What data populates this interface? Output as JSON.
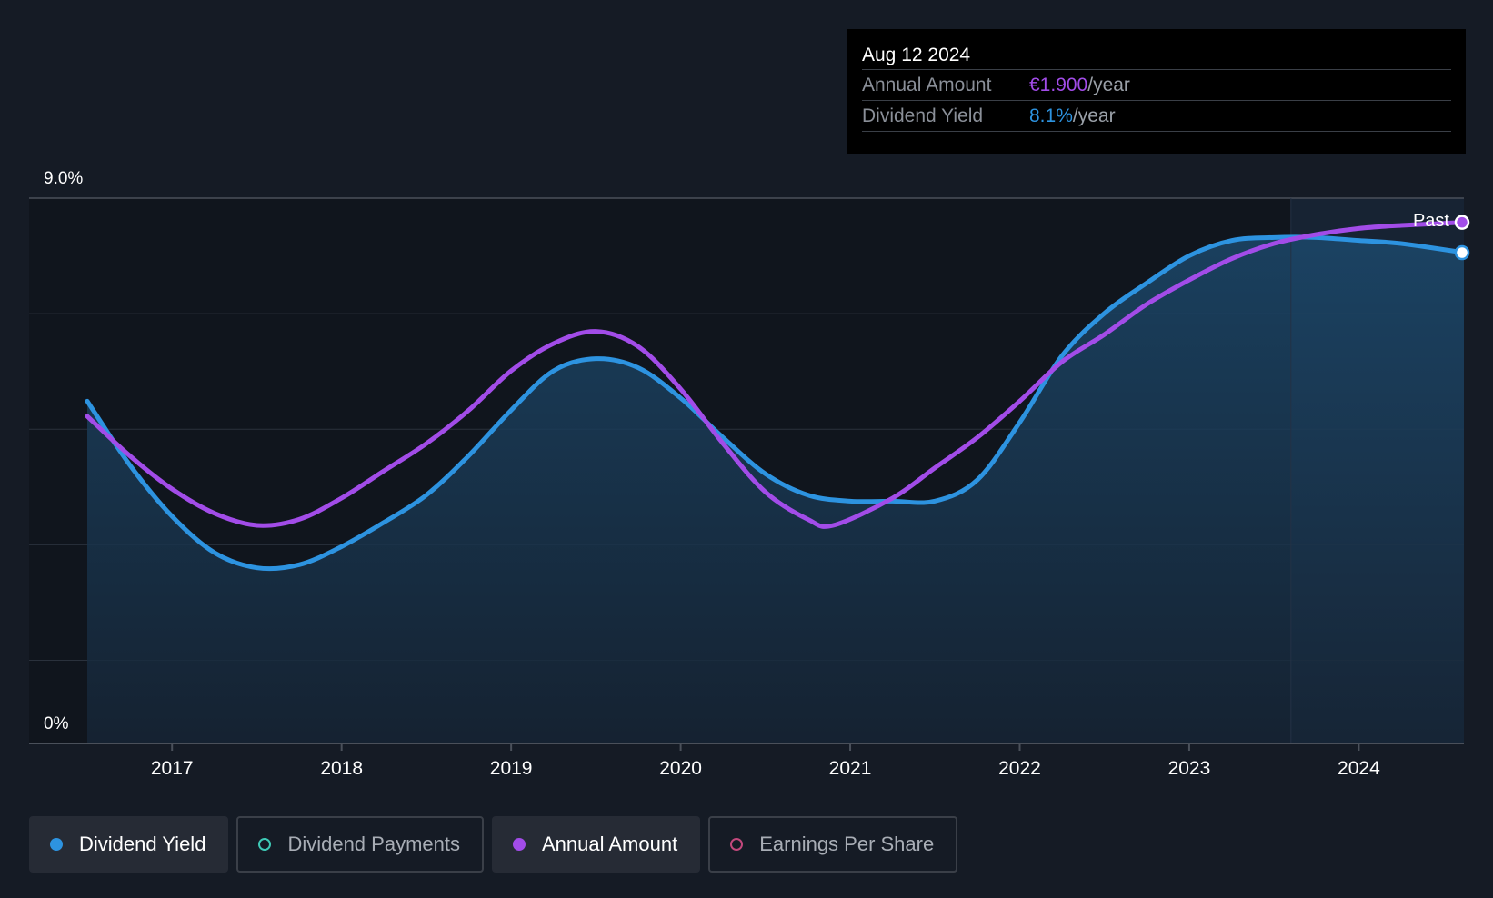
{
  "tooltip": {
    "date": "Aug 12 2024",
    "rows": [
      {
        "label": "Annual Amount",
        "value": "€1.900",
        "unit": "/year",
        "color": "#a24ce8"
      },
      {
        "label": "Dividend Yield",
        "value": "8.1%",
        "unit": "/year",
        "color": "#2d93e0"
      }
    ]
  },
  "legend": [
    {
      "label": "Dividend Yield",
      "color": "#2d93e0",
      "style": "filled",
      "active": true
    },
    {
      "label": "Dividend Payments",
      "color": "#3ec9b6",
      "style": "hollow",
      "active": false
    },
    {
      "label": "Annual Amount",
      "color": "#a24ce8",
      "style": "filled",
      "active": true
    },
    {
      "label": "Earnings Per Share",
      "color": "#c2487c",
      "style": "hollow",
      "active": false
    }
  ],
  "chart_data": {
    "type": "line",
    "ylim": [
      0,
      9.0
    ],
    "y_tick_labels": [
      "9.0%",
      "0%"
    ],
    "x_tick_labels": [
      "2017",
      "2018",
      "2019",
      "2020",
      "2021",
      "2022",
      "2023",
      "2024"
    ],
    "xlim": [
      2016.5,
      2024.62
    ],
    "past_marker": {
      "label": "Past",
      "x": 2023.6
    },
    "grid": true,
    "series": [
      {
        "name": "Dividend Yield",
        "color": "#2d93e0",
        "area": true,
        "points": [
          [
            2016.5,
            5.65
          ],
          [
            2016.75,
            4.6
          ],
          [
            2017.0,
            3.75
          ],
          [
            2017.25,
            3.15
          ],
          [
            2017.5,
            2.9
          ],
          [
            2017.75,
            2.95
          ],
          [
            2018.0,
            3.25
          ],
          [
            2018.25,
            3.65
          ],
          [
            2018.5,
            4.1
          ],
          [
            2018.75,
            4.75
          ],
          [
            2019.0,
            5.5
          ],
          [
            2019.25,
            6.15
          ],
          [
            2019.5,
            6.35
          ],
          [
            2019.75,
            6.2
          ],
          [
            2020.0,
            5.7
          ],
          [
            2020.25,
            5.05
          ],
          [
            2020.5,
            4.45
          ],
          [
            2020.75,
            4.1
          ],
          [
            2021.0,
            4.0
          ],
          [
            2021.25,
            4.0
          ],
          [
            2021.5,
            4.0
          ],
          [
            2021.75,
            4.35
          ],
          [
            2022.0,
            5.3
          ],
          [
            2022.25,
            6.4
          ],
          [
            2022.5,
            7.1
          ],
          [
            2022.75,
            7.6
          ],
          [
            2023.0,
            8.05
          ],
          [
            2023.25,
            8.3
          ],
          [
            2023.5,
            8.35
          ],
          [
            2023.75,
            8.35
          ],
          [
            2024.0,
            8.3
          ],
          [
            2024.25,
            8.25
          ],
          [
            2024.62,
            8.1
          ]
        ]
      },
      {
        "name": "Annual Amount",
        "color": "#a24ce8",
        "area": false,
        "points": [
          [
            2016.5,
            5.4
          ],
          [
            2016.75,
            4.75
          ],
          [
            2017.0,
            4.2
          ],
          [
            2017.25,
            3.8
          ],
          [
            2017.5,
            3.6
          ],
          [
            2017.75,
            3.7
          ],
          [
            2018.0,
            4.05
          ],
          [
            2018.25,
            4.5
          ],
          [
            2018.5,
            4.95
          ],
          [
            2018.75,
            5.5
          ],
          [
            2019.0,
            6.15
          ],
          [
            2019.25,
            6.6
          ],
          [
            2019.5,
            6.8
          ],
          [
            2019.75,
            6.55
          ],
          [
            2020.0,
            5.85
          ],
          [
            2020.25,
            4.95
          ],
          [
            2020.5,
            4.15
          ],
          [
            2020.75,
            3.7
          ],
          [
            2020.9,
            3.6
          ],
          [
            2021.25,
            4.05
          ],
          [
            2021.5,
            4.55
          ],
          [
            2021.75,
            5.05
          ],
          [
            2022.0,
            5.65
          ],
          [
            2022.25,
            6.3
          ],
          [
            2022.5,
            6.75
          ],
          [
            2022.75,
            7.25
          ],
          [
            2023.0,
            7.65
          ],
          [
            2023.25,
            8.0
          ],
          [
            2023.5,
            8.25
          ],
          [
            2023.75,
            8.4
          ],
          [
            2024.0,
            8.5
          ],
          [
            2024.25,
            8.55
          ],
          [
            2024.62,
            8.6
          ]
        ]
      }
    ]
  }
}
